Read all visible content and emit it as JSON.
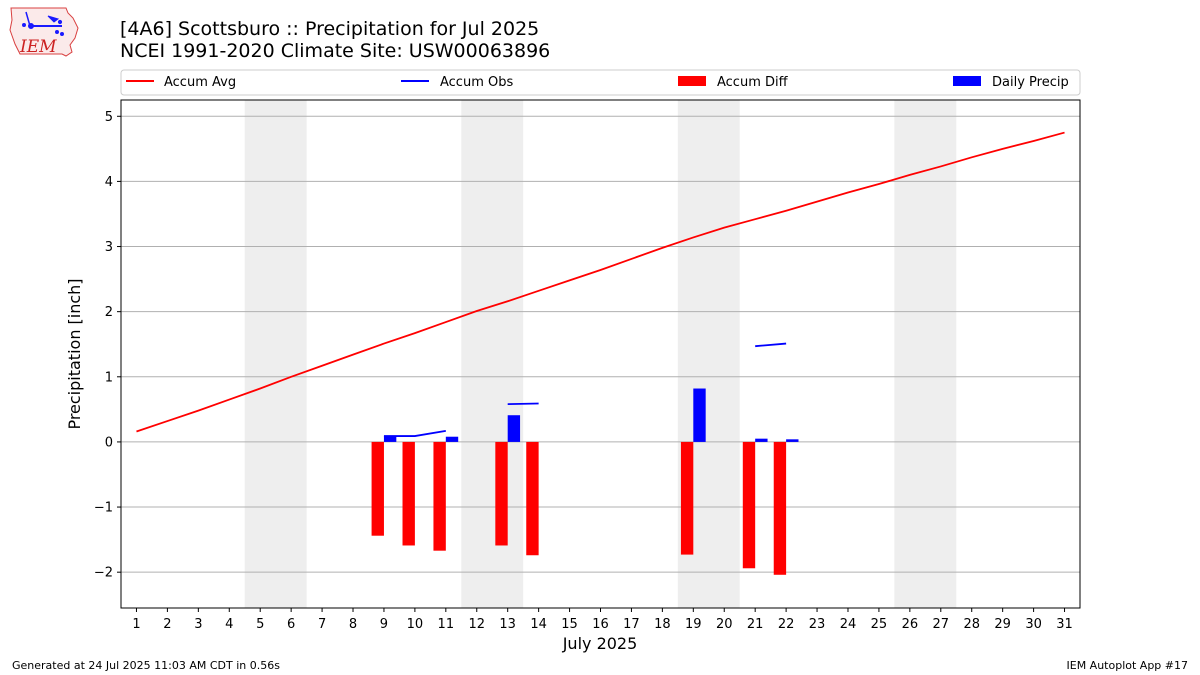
{
  "logo": {
    "text": "IEM"
  },
  "title": {
    "line1": "[4A6] Scottsburo :: Precipitation for Jul 2025",
    "line2": "NCEI 1991-2020 Climate Site: USW00063896"
  },
  "footer": {
    "left": "Generated at 24 Jul 2025 11:03 AM CDT in 0.56s",
    "right": "IEM Autoplot App #17"
  },
  "colors": {
    "avg": "#ff0000",
    "obs": "#0000ff",
    "diff": "#ff0000",
    "daily": "#0000ff",
    "weekend": "#eeeeee",
    "grid": "#b0b0b0"
  },
  "chart_data": {
    "type": "bar",
    "xlabel": "July 2025",
    "ylabel": "Precipitation [inch]",
    "xlim": [
      0.5,
      31.5
    ],
    "ylim": [
      -2.55,
      5.25
    ],
    "yticks": [
      -2,
      -1,
      0,
      1,
      2,
      3,
      4,
      5
    ],
    "ytick_labels": [
      "−2",
      "−1",
      "0",
      "1",
      "2",
      "3",
      "4",
      "5"
    ],
    "days": [
      1,
      2,
      3,
      4,
      5,
      6,
      7,
      8,
      9,
      10,
      11,
      12,
      13,
      14,
      15,
      16,
      17,
      18,
      19,
      20,
      21,
      22,
      23,
      24,
      25,
      26,
      27,
      28,
      29,
      30,
      31
    ],
    "weekend_spans": [
      [
        4.5,
        6.5
      ],
      [
        11.5,
        13.5
      ],
      [
        18.5,
        20.5
      ],
      [
        25.5,
        27.5
      ]
    ],
    "grid": true,
    "legend": {
      "placement": "top, spanning plot width",
      "entries": [
        "Accum Avg",
        "Accum Obs",
        "Accum Diff",
        "Daily Precip"
      ]
    },
    "series": [
      {
        "name": "Accum Avg",
        "kind": "line",
        "x": [
          1,
          2,
          3,
          4,
          5,
          6,
          7,
          8,
          9,
          10,
          11,
          12,
          13,
          14,
          15,
          16,
          17,
          18,
          19,
          20,
          21,
          22,
          23,
          24,
          25,
          26,
          27,
          28,
          29,
          30,
          31
        ],
        "values": [
          0.16,
          0.32,
          0.48,
          0.65,
          0.82,
          1.0,
          1.17,
          1.34,
          1.51,
          1.67,
          1.84,
          2.01,
          2.16,
          2.32,
          2.48,
          2.64,
          2.81,
          2.98,
          3.14,
          3.29,
          3.42,
          3.55,
          3.69,
          3.83,
          3.96,
          4.1,
          4.23,
          4.37,
          4.5,
          4.62,
          4.75
        ]
      },
      {
        "name": "Accum Obs",
        "kind": "line-segments",
        "segments": [
          {
            "x": [
              9,
              10,
              11
            ],
            "values": [
              0.09,
              0.09,
              0.17
            ]
          },
          {
            "x": [
              13,
              14
            ],
            "values": [
              0.58,
              0.59
            ]
          },
          {
            "x": [
              21,
              22
            ],
            "values": [
              1.47,
              1.51
            ]
          }
        ]
      },
      {
        "name": "Accum Diff",
        "kind": "bar",
        "x": [
          9,
          10,
          11,
          13,
          14,
          19,
          21,
          22
        ],
        "values": [
          -1.44,
          -1.59,
          -1.67,
          -1.59,
          -1.74,
          -1.73,
          -1.94,
          -2.04
        ]
      },
      {
        "name": "Daily Precip",
        "kind": "bar",
        "x": [
          9,
          11,
          13,
          19,
          21,
          22
        ],
        "values": [
          0.09,
          0.08,
          0.41,
          0.82,
          0.05,
          0.04
        ]
      }
    ]
  }
}
